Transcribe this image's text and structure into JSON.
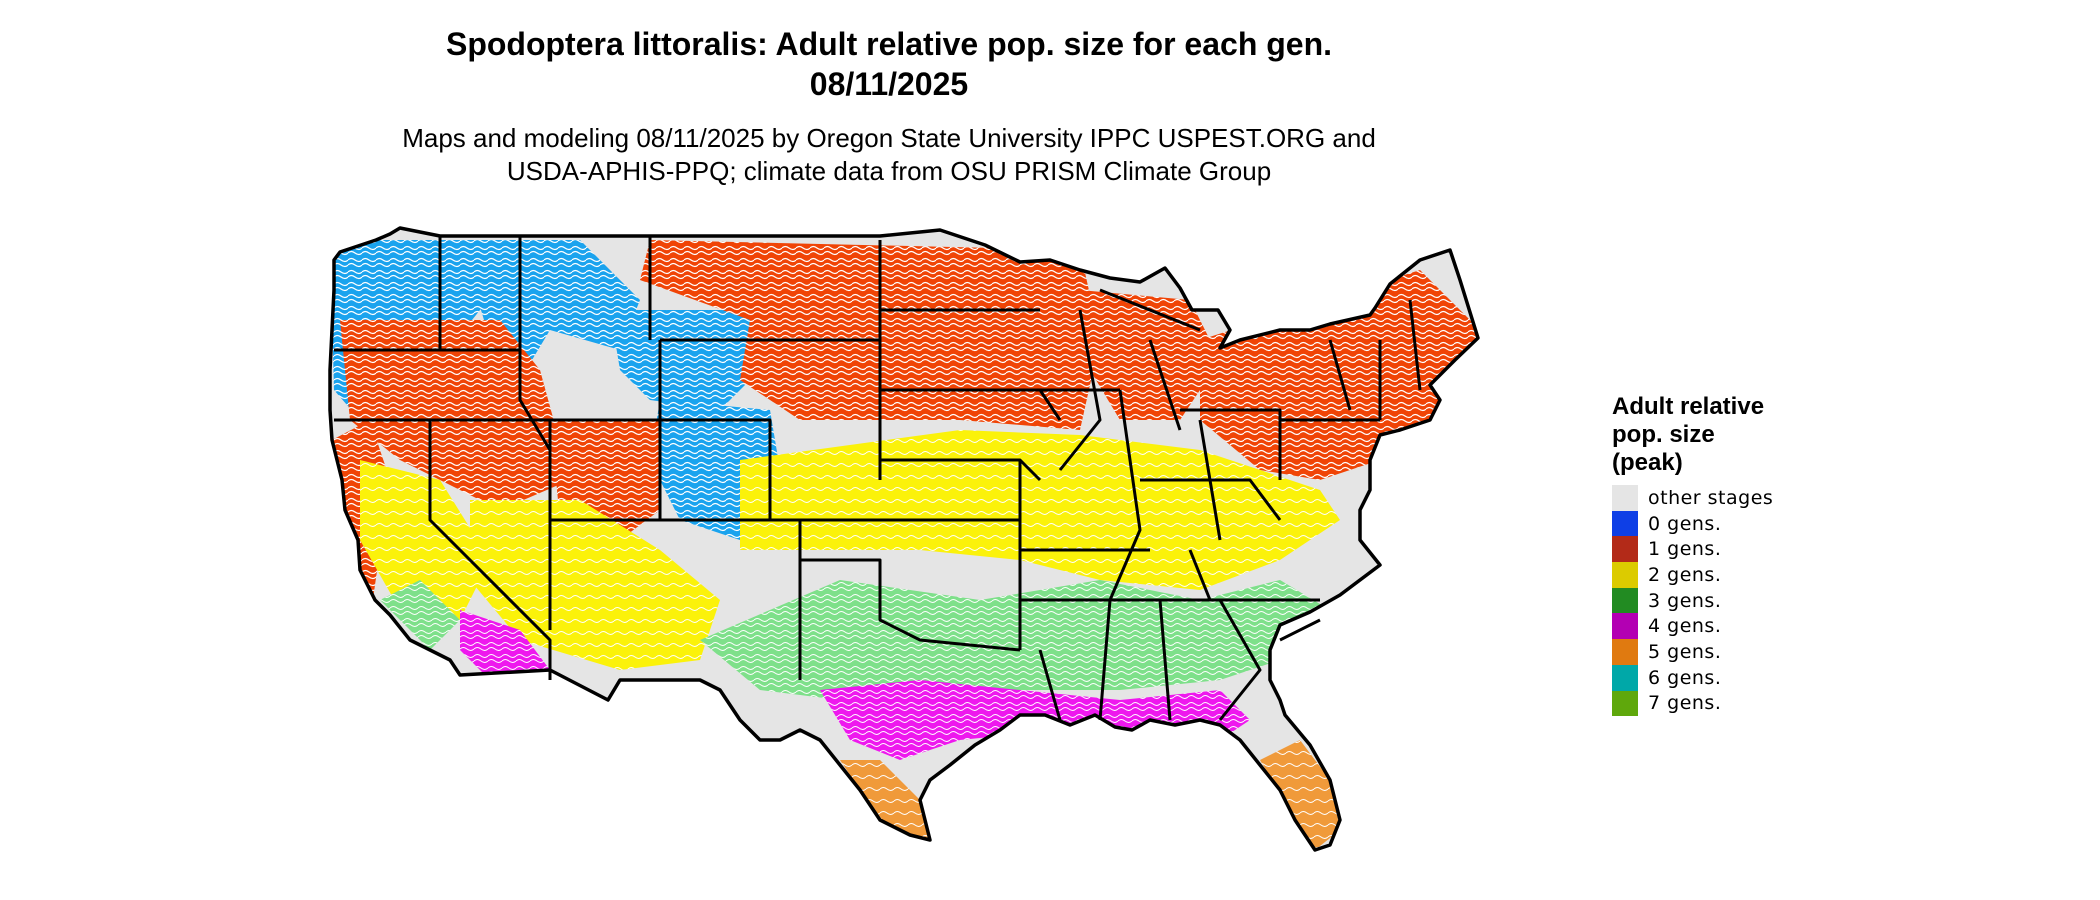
{
  "header": {
    "title_line1": "Spodoptera littoralis: Adult relative pop. size for each gen.",
    "title_line2": "08/11/2025",
    "subtitle_line1": "Maps and modeling 08/11/2025 by Oregon State University IPPC USPEST.ORG and",
    "subtitle_line2": "USDA-APHIS-PPQ; climate data from OSU PRISM Climate Group"
  },
  "legend": {
    "title_line1": "Adult relative",
    "title_line2": "pop. size",
    "title_line3": "(peak)",
    "items": [
      {
        "label": "other stages",
        "color": "#e5e5e5"
      },
      {
        "label": "0 gens.",
        "color": "#0e3fe6"
      },
      {
        "label": "1 gens.",
        "color": "#b32a18"
      },
      {
        "label": "2 gens.",
        "color": "#dccb00"
      },
      {
        "label": "3 gens.",
        "color": "#228b22"
      },
      {
        "label": "4 gens.",
        "color": "#b300b3"
      },
      {
        "label": "5 gens.",
        "color": "#e07a10"
      },
      {
        "label": "6 gens.",
        "color": "#00a8a8"
      },
      {
        "label": "7 gens.",
        "color": "#5fa80c"
      }
    ]
  },
  "map_colors": {
    "base": "#e5e5e5",
    "zone0": "#1aa3ee",
    "zone1": "#f04406",
    "zone2": "#fbf20a",
    "zone3": "#7ee08a",
    "zone4": "#ee18ee",
    "zone5": "#f09a3a",
    "border": "#000000"
  }
}
